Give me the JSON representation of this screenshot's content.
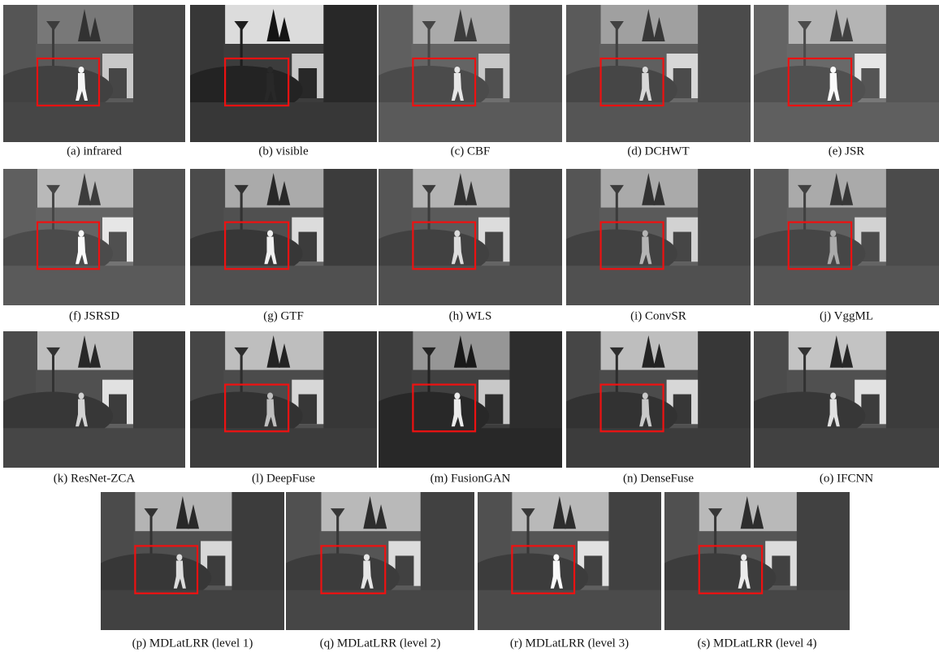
{
  "figure": {
    "panels": [
      {
        "caption": "(a) infrared"
      },
      {
        "caption": "(b) visible"
      },
      {
        "caption": "(c) CBF"
      },
      {
        "caption": "(d) DCHWT"
      },
      {
        "caption": "(e) JSR"
      },
      {
        "caption": "(f) JSRSD"
      },
      {
        "caption": "(g) GTF"
      },
      {
        "caption": "(h) WLS"
      },
      {
        "caption": "(i) ConvSR"
      },
      {
        "caption": "(j) VggML"
      },
      {
        "caption": "(k) ResNet-ZCA"
      },
      {
        "caption": "(l) DeepFuse"
      },
      {
        "caption": "(m) FusionGAN"
      },
      {
        "caption": "(n) DenseFuse"
      },
      {
        "caption": "(o) IFCNN"
      },
      {
        "caption": "(p) MDLatLRR (level 1)"
      },
      {
        "caption": "(q) MDLatLRR (level 2)"
      },
      {
        "caption": "(r) MDLatLRR (level 3)"
      },
      {
        "caption": "(s) MDLatLRR (level 4)"
      }
    ]
  }
}
